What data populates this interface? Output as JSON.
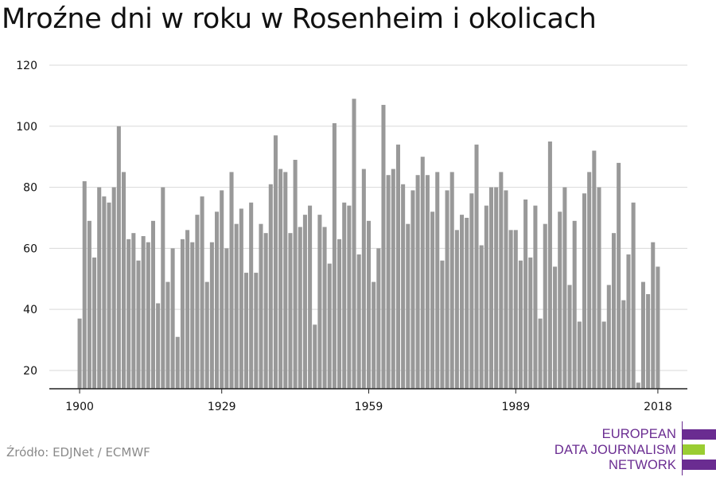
{
  "title": "Mroźne dni w roku w Rosenheim i okolicach",
  "source": "Źródło: EDJNet / ECMWF",
  "logo": {
    "lines": [
      "EUROPEAN",
      "DATA JOURNALISM",
      "NETWORK"
    ],
    "colors": {
      "purple": "#6a2c91",
      "green": "#9acd32"
    }
  },
  "colors": {
    "bar": "#999999",
    "grid": "#d9d9d9",
    "axis": "#222222",
    "text": "#111111"
  },
  "chart_data": {
    "type": "bar",
    "title": "Mroźne dni w roku w Rosenheim i okolicach",
    "xlabel": "",
    "ylabel": "",
    "x_ticks": [
      1900,
      1929,
      1959,
      1989,
      2018
    ],
    "y_ticks": [
      20,
      40,
      60,
      80,
      100,
      120
    ],
    "ylim": [
      14,
      120
    ],
    "grid": true,
    "legend": "none",
    "x": [
      1900,
      1901,
      1902,
      1903,
      1904,
      1905,
      1906,
      1907,
      1908,
      1909,
      1910,
      1911,
      1912,
      1913,
      1914,
      1915,
      1916,
      1917,
      1918,
      1919,
      1920,
      1921,
      1922,
      1923,
      1924,
      1925,
      1926,
      1927,
      1928,
      1929,
      1930,
      1931,
      1932,
      1933,
      1934,
      1935,
      1936,
      1937,
      1938,
      1939,
      1940,
      1941,
      1942,
      1943,
      1944,
      1945,
      1946,
      1947,
      1948,
      1949,
      1950,
      1951,
      1952,
      1953,
      1954,
      1955,
      1956,
      1957,
      1958,
      1959,
      1960,
      1961,
      1962,
      1963,
      1964,
      1965,
      1966,
      1967,
      1968,
      1969,
      1970,
      1971,
      1972,
      1973,
      1974,
      1975,
      1976,
      1977,
      1978,
      1979,
      1980,
      1981,
      1982,
      1983,
      1984,
      1985,
      1986,
      1987,
      1988,
      1989,
      1990,
      1991,
      1992,
      1993,
      1994,
      1995,
      1996,
      1997,
      1998,
      1999,
      2000,
      2001,
      2002,
      2003,
      2004,
      2005,
      2006,
      2007,
      2008,
      2009,
      2010,
      2011,
      2012,
      2013,
      2014,
      2015,
      2016,
      2017,
      2018
    ],
    "values": [
      37,
      82,
      69,
      57,
      80,
      77,
      75,
      80,
      100,
      85,
      63,
      65,
      56,
      64,
      62,
      69,
      42,
      80,
      49,
      60,
      31,
      63,
      66,
      62,
      71,
      77,
      49,
      62,
      72,
      79,
      60,
      85,
      68,
      73,
      52,
      75,
      52,
      68,
      65,
      81,
      97,
      86,
      85,
      65,
      89,
      67,
      71,
      74,
      35,
      71,
      67,
      55,
      101,
      63,
      75,
      74,
      109,
      58,
      86,
      69,
      49,
      60,
      107,
      84,
      86,
      94,
      81,
      68,
      79,
      84,
      90,
      84,
      72,
      85,
      56,
      79,
      85,
      66,
      71,
      70,
      78,
      94,
      61,
      74,
      80,
      80,
      85,
      79,
      66,
      66,
      56,
      76,
      57,
      74,
      37,
      68,
      95,
      54,
      72,
      80,
      48,
      69,
      36,
      78,
      85,
      92,
      80,
      36,
      48,
      65,
      88,
      43,
      58,
      75,
      16,
      49,
      45,
      62,
      54
    ]
  }
}
